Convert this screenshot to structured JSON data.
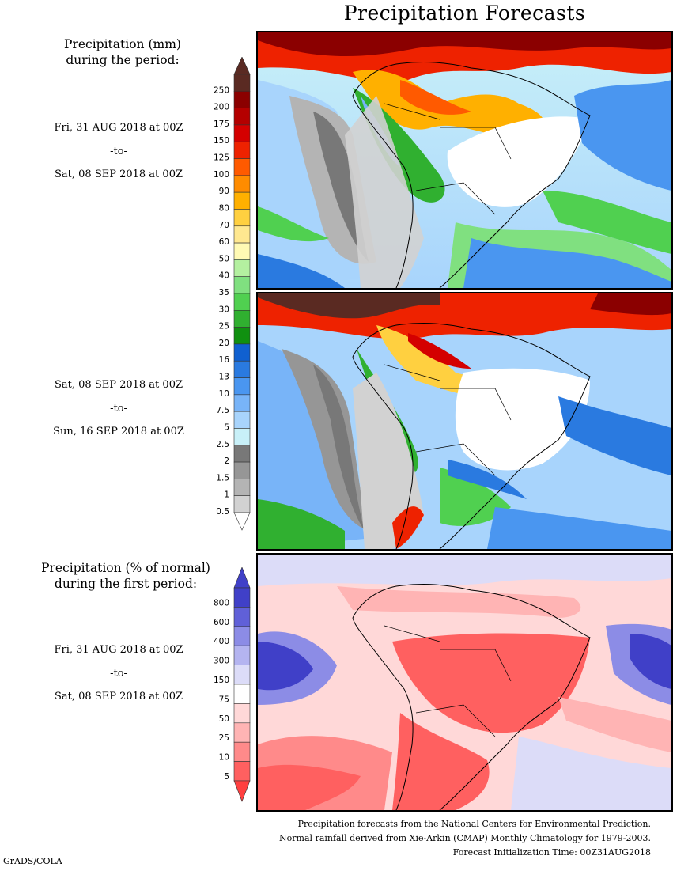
{
  "title": "Precipitation Forecasts",
  "left_panel": {
    "precip_heading": [
      "Precipitation (mm)",
      "during the period:"
    ],
    "period1": {
      "from": "Fri, 31 AUG 2018 at 00Z",
      "sep": "-to-",
      "to": "Sat, 08 SEP 2018 at 00Z"
    },
    "period2": {
      "from": "Sat, 08 SEP 2018 at 00Z",
      "sep": "-to-",
      "to": "Sun, 16 SEP 2018 at 00Z"
    },
    "anom_heading": [
      "Precipitation (% of normal)",
      "during the first period:"
    ],
    "period3": {
      "from": "Fri, 31 AUG 2018 at 00Z",
      "sep": "-to-",
      "to": "Sat, 08 SEP 2018 at 00Z"
    }
  },
  "precip_colorbar": {
    "labels": [
      "250",
      "200",
      "175",
      "150",
      "125",
      "100",
      "90",
      "80",
      "70",
      "60",
      "50",
      "40",
      "35",
      "30",
      "25",
      "20",
      "16",
      "13",
      "10",
      "7.5",
      "5",
      "2.5",
      "2",
      "1.5",
      "1",
      "0.5"
    ],
    "colors": [
      "#5a2a22",
      "#8b0000",
      "#b40000",
      "#d40000",
      "#ee2200",
      "#ff5a00",
      "#ff8c00",
      "#ffb000",
      "#ffd040",
      "#ffe890",
      "#fffab4",
      "#b4f0a0",
      "#80e080",
      "#50d050",
      "#30b030",
      "#109010",
      "#1060d0",
      "#2a7ae0",
      "#4a96f0",
      "#78b4f8",
      "#a8d4fc",
      "#c8f0f8",
      "#787878",
      "#969696",
      "#b4b4b4",
      "#d2d2d2"
    ],
    "top_arrow_color": "#5a2a22",
    "bottom_arrow_color": "#ffffff"
  },
  "anom_colorbar": {
    "labels": [
      "800",
      "600",
      "400",
      "300",
      "150",
      "75",
      "50",
      "25",
      "10",
      "5"
    ],
    "colors": [
      "#4040c8",
      "#6060d8",
      "#8c8ce6",
      "#b4b4f0",
      "#dcdcf8",
      "#ffffff",
      "#ffd8d8",
      "#ffb4b4",
      "#ff8a8a",
      "#ff6060"
    ],
    "top_arrow_color": "#4040c8",
    "bottom_arrow_color": "#ff4040"
  },
  "footer": [
    "Precipitation forecasts from the National Centers for Environmental Prediction.",
    "Normal rainfall derived from Xie-Arkin (CMAP) Monthly Climatology for 1979-2003.",
    "Forecast Initialization Time: 00Z31AUG2018"
  ],
  "credit": "GrADS/COLA"
}
